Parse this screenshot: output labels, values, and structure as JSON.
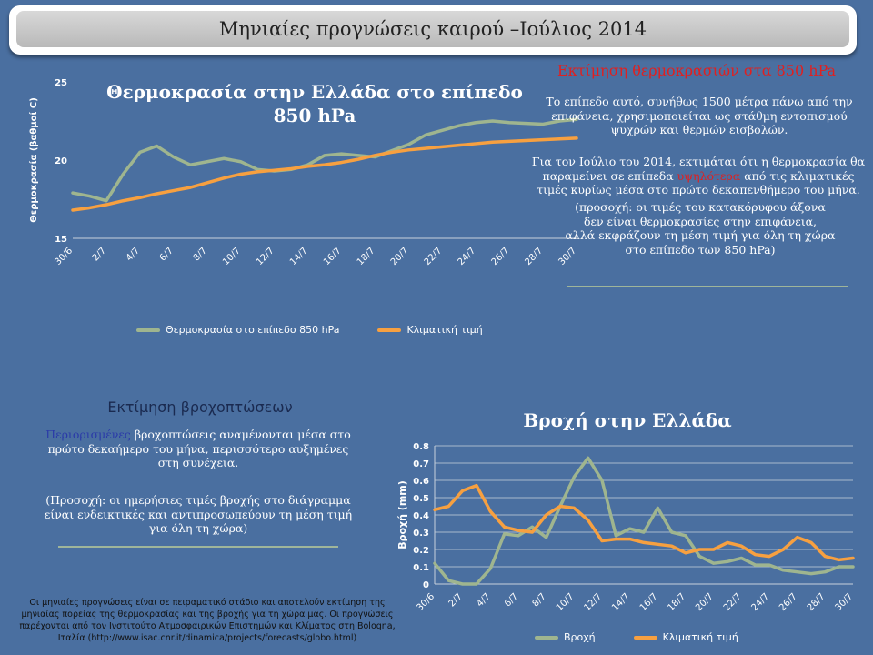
{
  "header": {
    "title": "Μηνιαίες προγνώσεις καιρού –Ιούλιος 2014"
  },
  "temp_section": {
    "heading": "Εκτίμηση θερμοκρασιών στα 850 hPa",
    "para1": "Το επίπεδο αυτό, συνήθως 1500 μέτρα πάνω από την επιφάνεια, χρησιμοποιείται ως στάθμη εντοπισμού ψυχρών και θερμών εισβολών.",
    "para2_a": "Για τον Ιούλιο του 2014, εκτιμάται ότι η θερμοκρασία θα παραμείνει σε επίπεδα",
    "para2_red": "υψηλότερα",
    "para2_b": "από τις κλιματικές τιμές κυρίως μέσα στο πρώτο δεκαπενθήμερο του μήνα.",
    "para3_a": "(προσοχή: οι τιμές του κατακόρυφου άξονα",
    "para3_ul": "δεν είναι θερμοκρασίες στην επιφάνεια,",
    "para3_b": "αλλά εκφράζουν τη μέση τιμή για όλη τη χώρα",
    "para3_c": "στο επίπεδο των 850 hPa)"
  },
  "rain_section": {
    "heading": "Εκτίμηση βροχοπτώσεων",
    "para1_blue": "Περιορισμένες",
    "para1_rest": "βροχοπτώσεις αναμένονται μέσα στο πρώτο δεκαήμερο του μήνα, περισσότερο αυξημένες στη συνέχεια.",
    "para2": "(Προσοχή: οι ημερήσιες τιμές βροχής στο διάγραμμα είναι ενδεικτικές και αντιπροσωπεύουν τη μέση τιμή για όλη τη χώρα)"
  },
  "footer": {
    "line1": "Οι μηνιαίες προγνώσεις είναι σε πειραματικό στάδιο και αποτελούν εκτίμηση της",
    "line2": "μηνιαίας πορείας της θερμοκρασίας και της βροχής για τη χώρα μας. Οι προγνώσεις",
    "line3": "παρέχονται από τον Ινστιτούτο Ατμοσφαιρικών Επιστημών και Κλίματος στη Bologna,",
    "line4": "Ιταλία (http://www.isac.cnr.it/dinamica/projects/forecasts/globo.html)"
  },
  "colors": {
    "series1": "#9fb58f",
    "series2": "#f7a040",
    "grid": "#c8d0dc",
    "background": "#4a6fa0"
  },
  "chart_data": [
    {
      "type": "line",
      "title": "Θερμοκρασία στην Ελλάδα στο επίπεδο 850 hPa",
      "ylabel": "Θερμοκρασία (βαθμοί C)",
      "xlabel": "",
      "ylim": [
        15,
        25
      ],
      "yticks": [
        15,
        20,
        25
      ],
      "grid": false,
      "legend_position": "bottom",
      "x": [
        "30/6",
        "1/7",
        "2/7",
        "3/7",
        "4/7",
        "5/7",
        "6/7",
        "7/7",
        "8/7",
        "9/7",
        "10/7",
        "11/7",
        "12/7",
        "13/7",
        "14/7",
        "15/7",
        "16/7",
        "17/7",
        "18/7",
        "19/7",
        "20/7",
        "21/7",
        "22/7",
        "23/7",
        "24/7",
        "25/7",
        "26/7",
        "27/7",
        "28/7",
        "29/7",
        "30/7"
      ],
      "tick_labels": [
        "30/6",
        "2/7",
        "4/7",
        "6/7",
        "8/7",
        "10/7",
        "12/7",
        "14/7",
        "16/7",
        "18/7",
        "20/7",
        "22/7",
        "24/7",
        "26/7",
        "28/7",
        "30/7"
      ],
      "series": [
        {
          "name": "Θερμοκρασία στο επίπεδο 850 hPa",
          "values": [
            17.9,
            17.7,
            17.4,
            19.1,
            20.5,
            20.9,
            20.2,
            19.7,
            19.9,
            20.1,
            19.9,
            19.4,
            19.3,
            19.4,
            19.7,
            20.3,
            20.4,
            20.3,
            20.2,
            20.6,
            21.0,
            21.6,
            21.9,
            22.2,
            22.4,
            22.5,
            22.4,
            22.35,
            22.3,
            22.5,
            22.6
          ]
        },
        {
          "name": "Κλιματική τιμή",
          "values": [
            16.8,
            16.95,
            17.15,
            17.4,
            17.6,
            17.85,
            18.05,
            18.25,
            18.55,
            18.85,
            19.1,
            19.25,
            19.35,
            19.45,
            19.6,
            19.7,
            19.85,
            20.05,
            20.3,
            20.5,
            20.65,
            20.75,
            20.85,
            20.95,
            21.05,
            21.15,
            21.2,
            21.25,
            21.3,
            21.35,
            21.4
          ]
        }
      ]
    },
    {
      "type": "line",
      "title": "Βροχή στην Ελλάδα",
      "ylabel": "Βροχή (mm)",
      "xlabel": "",
      "ylim": [
        0,
        0.8
      ],
      "yticks": [
        "0",
        "0.1",
        "0.2",
        "0.3",
        "0.4",
        "0.5",
        "0.6",
        "0.7",
        "0.8"
      ],
      "grid": true,
      "legend_position": "bottom",
      "x": [
        "30/6",
        "1/7",
        "2/7",
        "3/7",
        "4/7",
        "5/7",
        "6/7",
        "7/7",
        "8/7",
        "9/7",
        "10/7",
        "11/7",
        "12/7",
        "13/7",
        "14/7",
        "15/7",
        "16/7",
        "17/7",
        "18/7",
        "19/7",
        "20/7",
        "21/7",
        "22/7",
        "23/7",
        "24/7",
        "25/7",
        "26/7",
        "27/7",
        "28/7",
        "29/7",
        "30/7"
      ],
      "tick_labels": [
        "30/6",
        "2/7",
        "4/7",
        "6/7",
        "8/7",
        "10/7",
        "12/7",
        "14/7",
        "16/7",
        "18/7",
        "20/7",
        "22/7",
        "24/7",
        "26/7",
        "28/7",
        "30/7"
      ],
      "series": [
        {
          "name": "Βροχή",
          "values": [
            0.12,
            0.02,
            0.0,
            0.0,
            0.09,
            0.29,
            0.28,
            0.33,
            0.27,
            0.45,
            0.62,
            0.73,
            0.6,
            0.28,
            0.32,
            0.3,
            0.44,
            0.3,
            0.28,
            0.16,
            0.12,
            0.13,
            0.15,
            0.11,
            0.11,
            0.08,
            0.07,
            0.06,
            0.07,
            0.1,
            0.1
          ]
        },
        {
          "name": "Κλιματική τιμή",
          "values": [
            0.43,
            0.45,
            0.54,
            0.57,
            0.42,
            0.33,
            0.31,
            0.3,
            0.4,
            0.45,
            0.44,
            0.37,
            0.25,
            0.26,
            0.26,
            0.24,
            0.23,
            0.22,
            0.18,
            0.2,
            0.2,
            0.24,
            0.22,
            0.17,
            0.16,
            0.2,
            0.27,
            0.24,
            0.16,
            0.14,
            0.15
          ]
        }
      ]
    }
  ]
}
